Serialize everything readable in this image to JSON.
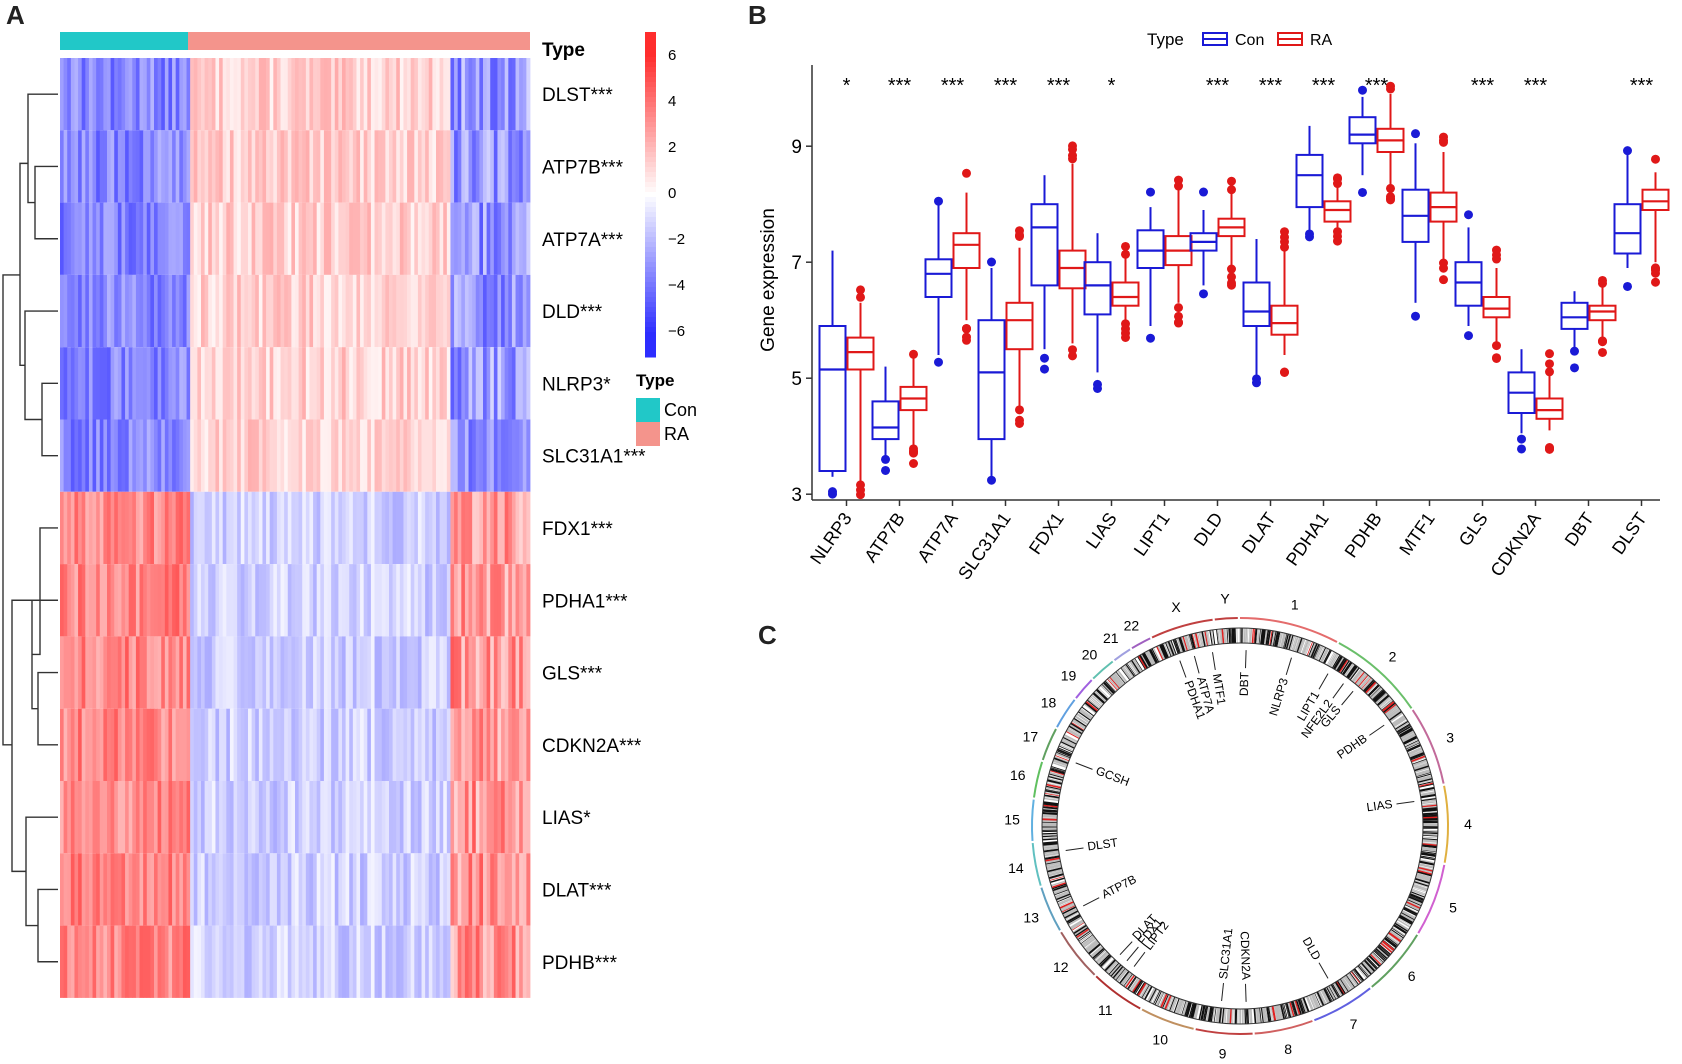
{
  "panels": {
    "a": "A",
    "b": "B",
    "c": "C"
  },
  "colors": {
    "con": "#1a1ad6",
    "ra": "#e01818",
    "con_bar": "#21c8c8",
    "ra_bar": "#f4948c",
    "heat_high": "#ff2020",
    "heat_low": "#2020ff"
  },
  "heatmap": {
    "type_title": "Type",
    "genes": [
      "DLST***",
      "ATP7B***",
      "ATP7A***",
      "DLD***",
      "NLRP3*",
      "SLC31A1***",
      "FDX1***",
      "PDHA1***",
      "GLS***",
      "CDKN2A***",
      "LIAS*",
      "DLAT***",
      "PDHB***"
    ],
    "cluster_signs": [
      1,
      1,
      1,
      1,
      1,
      1,
      -1,
      -1,
      -1,
      -1,
      -1,
      -1,
      -1
    ],
    "scale_ticks": [
      "6",
      "4",
      "2",
      "0",
      "−2",
      "−4",
      "−6"
    ],
    "legend_title": "Type",
    "legend_items": [
      "Con",
      "RA"
    ]
  },
  "chart_data": {
    "type": "boxplot",
    "ylabel": "Gene expression",
    "ylim": [
      2.9,
      10.4
    ],
    "yticks": [
      3,
      5,
      7,
      9
    ],
    "legend_title": "Type",
    "legend_items": [
      "Con",
      "RA"
    ],
    "categories": [
      "NLRP3",
      "ATP7B",
      "ATP7A",
      "SLC31A1",
      "FDX1",
      "LIAS",
      "LIPT1",
      "DLD",
      "DLAT",
      "PDHA1",
      "PDHB",
      "MTF1",
      "GLS",
      "CDKN2A",
      "DBT",
      "DLST"
    ],
    "significance": [
      "*",
      "***",
      "***",
      "***",
      "***",
      "*",
      "",
      "***",
      "***",
      "***",
      "***",
      "",
      "***",
      "***",
      "",
      "***"
    ],
    "series": [
      {
        "name": "Con",
        "boxes": [
          [
            3.3,
            3.4,
            5.15,
            5.9,
            7.2
          ],
          [
            3.6,
            3.95,
            4.15,
            4.6,
            5.2
          ],
          [
            5.4,
            6.4,
            6.8,
            7.05,
            8.0
          ],
          [
            3.3,
            3.95,
            5.1,
            6.0,
            6.9
          ],
          [
            5.5,
            6.6,
            7.6,
            8.0,
            8.5
          ],
          [
            5.1,
            6.1,
            6.6,
            7.0,
            7.5
          ],
          [
            5.9,
            6.9,
            7.2,
            7.55,
            7.95
          ],
          [
            6.6,
            7.2,
            7.35,
            7.5,
            7.9
          ],
          [
            5.0,
            5.9,
            6.15,
            6.65,
            7.4
          ],
          [
            7.5,
            7.95,
            8.5,
            8.85,
            9.35
          ],
          [
            8.5,
            9.05,
            9.2,
            9.5,
            9.85
          ],
          [
            6.3,
            7.35,
            7.8,
            8.25,
            9.05
          ],
          [
            5.9,
            6.25,
            6.65,
            7.0,
            7.6
          ],
          [
            4.05,
            4.4,
            4.75,
            5.1,
            5.5
          ],
          [
            5.5,
            5.85,
            6.05,
            6.3,
            6.5
          ],
          [
            6.9,
            7.15,
            7.5,
            8.0,
            8.9
          ]
        ]
      },
      {
        "name": "RA",
        "boxes": [
          [
            3.2,
            5.15,
            5.45,
            5.7,
            6.3
          ],
          [
            3.8,
            4.45,
            4.65,
            4.85,
            5.4
          ],
          [
            6.0,
            6.9,
            7.3,
            7.5,
            8.2
          ],
          [
            4.5,
            5.5,
            6.0,
            6.3,
            7.25
          ],
          [
            5.6,
            6.55,
            6.9,
            7.2,
            8.7
          ],
          [
            6.0,
            6.25,
            6.4,
            6.65,
            7.1
          ],
          [
            6.3,
            6.95,
            7.2,
            7.45,
            8.3
          ],
          [
            6.9,
            7.45,
            7.6,
            7.75,
            8.2
          ],
          [
            5.4,
            5.75,
            5.95,
            6.25,
            7.25
          ],
          [
            7.6,
            7.7,
            7.9,
            8.05,
            8.35
          ],
          [
            8.3,
            8.9,
            9.1,
            9.3,
            9.9
          ],
          [
            7.0,
            7.7,
            7.95,
            8.2,
            8.9
          ],
          [
            5.6,
            6.05,
            6.2,
            6.4,
            6.9
          ],
          [
            4.1,
            4.3,
            4.45,
            4.65,
            5.1
          ],
          [
            5.7,
            6.0,
            6.15,
            6.25,
            6.6
          ],
          [
            7.0,
            7.9,
            8.05,
            8.25,
            8.55
          ]
        ]
      }
    ]
  },
  "circos": {
    "chromosomes": [
      "1",
      "2",
      "3",
      "4",
      "5",
      "6",
      "7",
      "8",
      "9",
      "10",
      "11",
      "12",
      "13",
      "14",
      "15",
      "16",
      "17",
      "18",
      "19",
      "20",
      "21",
      "22",
      "X",
      "Y"
    ],
    "genes": [
      {
        "name": "MTF1",
        "angle": 351
      },
      {
        "name": "DBT",
        "angle": 2
      },
      {
        "name": "NLRP3",
        "angle": 17
      },
      {
        "name": "LIPT1",
        "angle": 30
      },
      {
        "name": "NFE2L2",
        "angle": 36
      },
      {
        "name": "GLS",
        "angle": 40
      },
      {
        "name": "PDHB",
        "angle": 55
      },
      {
        "name": "LIAS",
        "angle": 82
      },
      {
        "name": "DLD",
        "angle": 150
      },
      {
        "name": "CDKN2A",
        "angle": 178
      },
      {
        "name": "SLC31A1",
        "angle": 186
      },
      {
        "name": "LIPT2",
        "angle": 217
      },
      {
        "name": "FDX1",
        "angle": 220
      },
      {
        "name": "DLAT",
        "angle": 223
      },
      {
        "name": "ATP7B",
        "angle": 243
      },
      {
        "name": "DLST",
        "angle": 262
      },
      {
        "name": "GCSH",
        "angle": 291
      },
      {
        "name": "PDHA1",
        "angle": 340
      },
      {
        "name": "ATP7A",
        "angle": 345
      }
    ]
  }
}
